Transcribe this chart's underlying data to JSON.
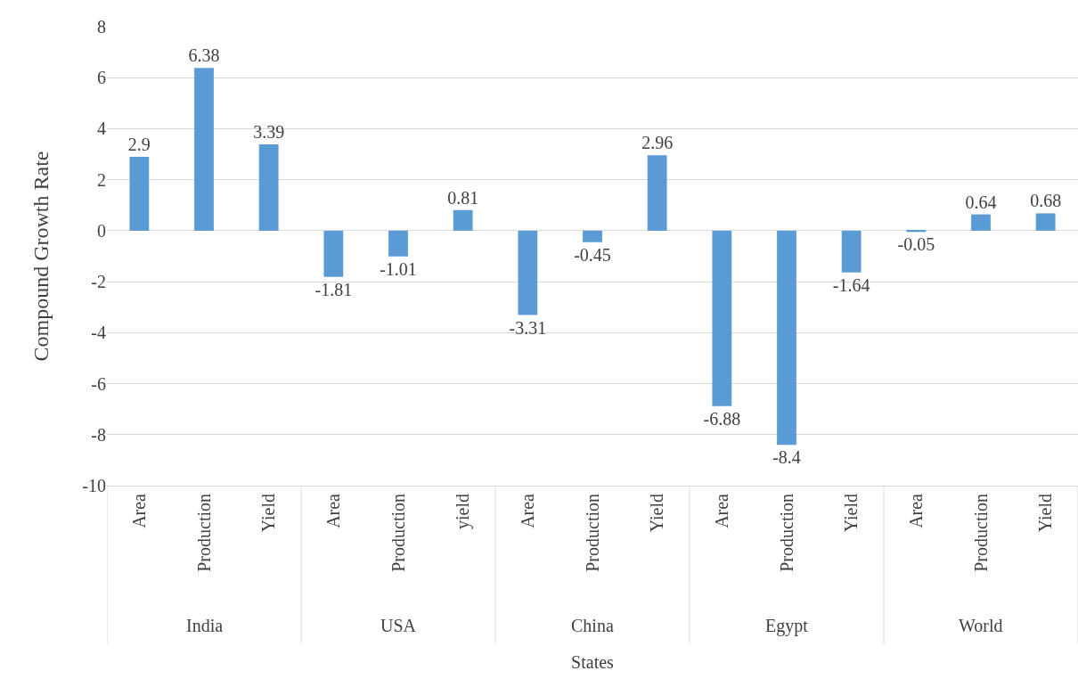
{
  "chart_data": {
    "type": "bar",
    "xlabel": "States",
    "ylabel": "Compound Growth Rate",
    "categories": [
      "Area",
      "Production",
      "Yield",
      "Area",
      "Production",
      "yield",
      "Area",
      "Production",
      "Yield",
      "Area",
      "Production",
      "Yield",
      "Area",
      "Production",
      "Yield"
    ],
    "values": [
      2.9,
      6.38,
      3.39,
      -1.81,
      -1.01,
      0.81,
      -3.31,
      -0.45,
      2.96,
      -6.88,
      -8.4,
      -1.64,
      -0.05,
      0.64,
      0.68
    ],
    "color": "#5b9bd5",
    "annotations": [
      "India",
      "USA",
      "China",
      "Egypt",
      "World"
    ],
    "ylim": [
      -10,
      8
    ],
    "yticks": [
      -10,
      -8,
      -6,
      -4,
      -2,
      0,
      2,
      4,
      6,
      8
    ],
    "grid": "y",
    "legend": false,
    "data_labels": true
  }
}
